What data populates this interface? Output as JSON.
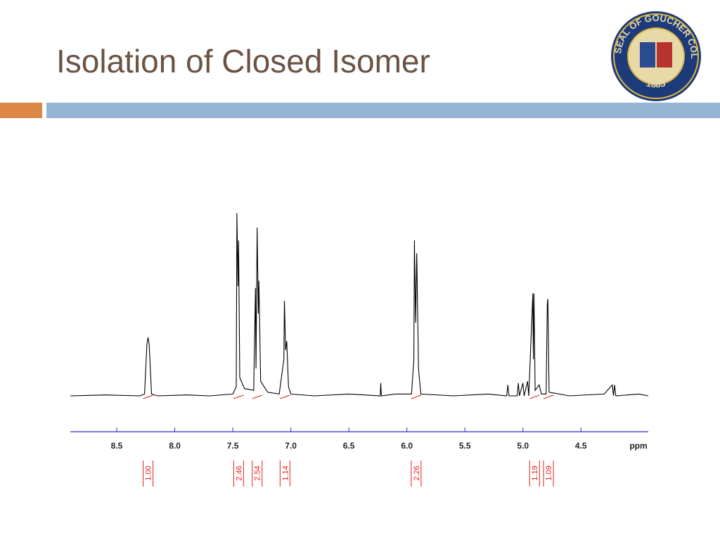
{
  "title": "Isolation of Closed Isomer",
  "logo": {
    "text": "SEAL OF GOUCHER COLLEGE",
    "year": "1885"
  },
  "chart_data": {
    "type": "line",
    "x_label": "ppm",
    "xlim": [
      8.9,
      3.92
    ],
    "xticks": [
      8.5,
      8.0,
      7.5,
      7.0,
      6.5,
      6.0,
      5.5,
      5.0,
      4.5
    ],
    "xtick_labels": [
      "8.5",
      "8.0",
      "7.5",
      "7.0",
      "6.5",
      "6.0",
      "5.5",
      "5.0",
      "4.5"
    ],
    "ylim": [
      0,
      100
    ],
    "series": [
      {
        "color": "#000000",
        "x": [
          8.9,
          8.6,
          8.3,
          8.26,
          8.24,
          8.23,
          8.22,
          8.2,
          8.15,
          7.9,
          7.7,
          7.5,
          7.47,
          7.465,
          7.455,
          7.45,
          7.44,
          7.4,
          7.32,
          7.305,
          7.3,
          7.29,
          7.28,
          7.275,
          7.26,
          7.2,
          7.1,
          7.06,
          7.055,
          7.045,
          7.035,
          7.02,
          7.0,
          6.8,
          6.5,
          6.23,
          6.225,
          6.22,
          6.1,
          5.96,
          5.94,
          5.935,
          5.925,
          5.915,
          5.9,
          5.88,
          5.6,
          5.3,
          5.14,
          5.13,
          5.12,
          5.05,
          5.04,
          5.03,
          5.0,
          4.99,
          4.96,
          4.95,
          4.915,
          4.91,
          4.905,
          4.895,
          4.86,
          4.84,
          4.8,
          4.79,
          4.785,
          4.775,
          4.6,
          4.3,
          4.23,
          4.22,
          4.21,
          4.2,
          4.0,
          3.92
        ],
        "values": [
          0,
          0.5,
          0,
          1,
          28,
          32,
          28,
          1,
          0,
          0.5,
          0,
          1,
          5,
          100,
          60,
          85,
          10,
          4,
          3,
          59,
          15,
          92,
          45,
          63,
          8,
          2,
          1,
          20,
          52,
          25,
          30,
          5,
          1,
          0,
          1,
          0,
          7,
          0,
          1,
          1,
          20,
          85,
          40,
          78,
          15,
          1,
          0,
          1,
          0,
          6,
          0,
          0,
          7,
          0,
          7,
          0,
          8,
          0,
          56,
          20,
          56,
          3,
          6,
          1,
          1,
          50,
          53,
          2,
          0,
          1,
          6,
          0,
          6,
          0,
          1,
          0
        ]
      }
    ],
    "integrals": {
      "x": [
        8.23,
        7.45,
        7.29,
        7.05,
        5.92,
        4.9,
        4.78
      ],
      "values": [
        1.0,
        2.46,
        2.54,
        1.14,
        2.26,
        1.19,
        1.09
      ],
      "value_labels": [
        "1.00",
        "2.46",
        "2.54",
        "1.14",
        "2.26",
        "1.19",
        "1.09"
      ],
      "color": "#e0201c"
    }
  }
}
